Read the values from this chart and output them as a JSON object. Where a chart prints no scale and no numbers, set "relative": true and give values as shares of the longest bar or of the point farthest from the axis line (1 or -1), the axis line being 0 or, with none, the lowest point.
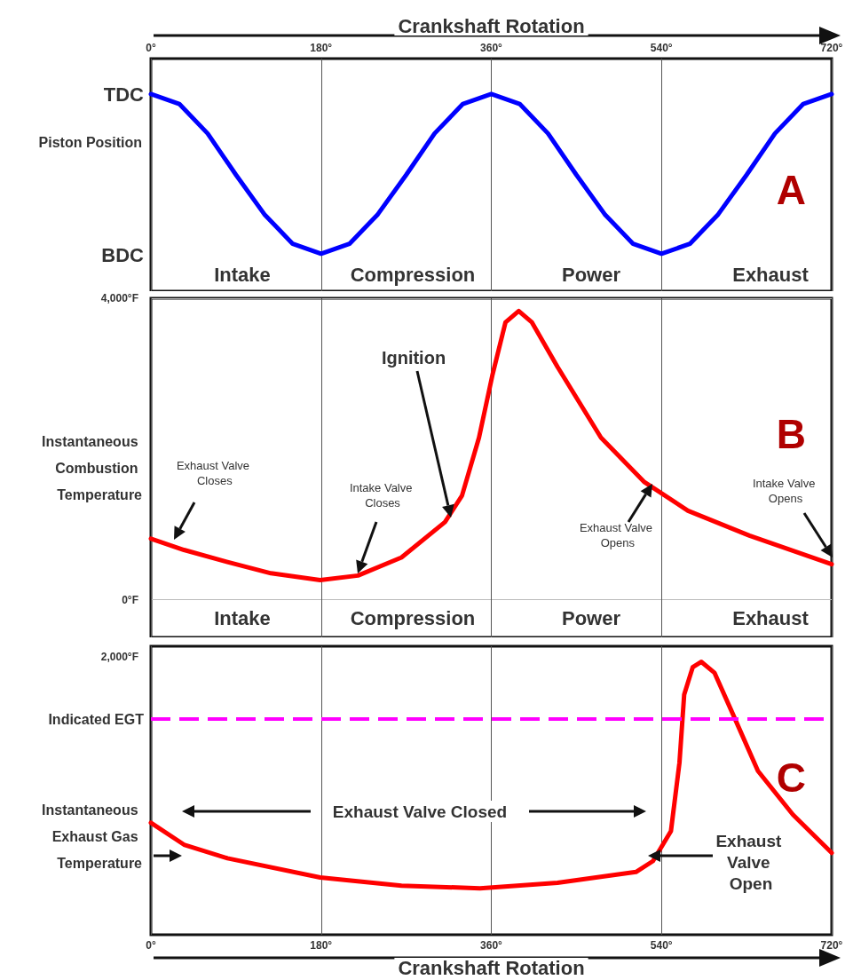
{
  "chart_data": [
    {
      "type": "line",
      "title": "A",
      "xlabel": "Crankshaft Rotation",
      "ylabel": "Piston Position",
      "relative": true,
      "x": [
        0,
        30,
        60,
        90,
        120,
        150,
        180,
        210,
        240,
        270,
        300,
        330,
        360,
        390,
        420,
        450,
        480,
        510,
        540,
        570,
        600,
        630,
        660,
        690,
        720
      ],
      "series": [
        {
          "color": "#0000ff",
          "values": [
            1,
            0.95,
            0.8,
            0.59,
            0.39,
            0.24,
            0.19,
            0.24,
            0.39,
            0.59,
            0.8,
            0.95,
            1,
            0.95,
            0.8,
            0.59,
            0.39,
            0.24,
            0.19,
            0.24,
            0.39,
            0.59,
            0.8,
            0.95,
            1
          ]
        }
      ],
      "xlim": [
        0,
        720
      ],
      "xticks": [
        {
          "value": 0,
          "label": "0°"
        },
        {
          "value": 180,
          "label": "180°"
        },
        {
          "value": 360,
          "label": "360°"
        },
        {
          "value": 540,
          "label": "540°"
        },
        {
          "value": 720,
          "label": "720°"
        }
      ],
      "annotations": [
        "TDC",
        "BDC",
        "Intake",
        "Compression",
        "Power",
        "Exhaust"
      ],
      "grid": "x",
      "marker": "none",
      "line_style": "solid",
      "legend": false
    },
    {
      "type": "line",
      "title": "B",
      "ylabel": "Instantaneous Combustion Temperature",
      "x": [
        0,
        35,
        81,
        127,
        179,
        219,
        265,
        311,
        329,
        347,
        361,
        375,
        389,
        403,
        430,
        476,
        522,
        568,
        633,
        720
      ],
      "series": [
        {
          "color": "#ff0000",
          "values": [
            810,
            660,
            500,
            350,
            260,
            320,
            560,
            1030,
            1380,
            2150,
            2970,
            3680,
            3830,
            3680,
            3090,
            2150,
            1560,
            1180,
            850,
            470
          ]
        }
      ],
      "xlim": [
        0,
        720
      ],
      "xticks": [
        0,
        180,
        360,
        540,
        720
      ],
      "ylim": [
        -500,
        4000
      ],
      "yticks": [
        {
          "value": 0,
          "label": "0°F"
        },
        {
          "value": 4000,
          "label": "4,000°F"
        }
      ],
      "annotations": [
        "Intake",
        "Compression",
        "Power",
        "Exhaust",
        "Exhaust Valve Closes",
        "Intake Valve Closes",
        "Ignition",
        "Exhaust Valve Opens",
        "Intake Valve Opens"
      ],
      "tick_labels": "y",
      "grid": true,
      "marker": "none",
      "line_style": "solid",
      "legend": false
    },
    {
      "type": "line",
      "title": "C",
      "xlabel": "Crankshaft Rotation",
      "ylabel": "Instantaneous Exhaust Gas Temperature",
      "relative": true,
      "x": [
        0,
        35,
        81,
        179,
        265,
        348,
        430,
        513,
        531,
        550,
        559,
        564,
        573,
        582,
        596,
        614,
        642,
        679,
        720
      ],
      "series": [
        {
          "color": "#ff0000",
          "values": [
            0.41,
            0.33,
            0.28,
            0.21,
            0.18,
            0.17,
            0.19,
            0.23,
            0.27,
            0.38,
            0.63,
            0.88,
            0.98,
            1,
            0.96,
            0.82,
            0.6,
            0.44,
            0.3
          ]
        }
      ],
      "xlim": [
        0,
        720
      ],
      "xticks": [
        {
          "value": 0,
          "label": "0°"
        },
        {
          "value": 180,
          "label": "180°"
        },
        {
          "value": 360,
          "label": "360°"
        },
        {
          "value": 540,
          "label": "540°"
        },
        {
          "value": 720,
          "label": "720°"
        }
      ],
      "ref_lines": [
        {
          "axis": "y",
          "value": 0.79,
          "label": "Indicated EGT",
          "color": "#ff00ff",
          "line_style": "dashed"
        }
      ],
      "annotations": [
        "2,000°F",
        "Exhaust Valve Closed",
        "Exhaust Valve Open"
      ],
      "grid": "x",
      "marker": "none",
      "line_style": "solid",
      "legend": false
    }
  ]
}
